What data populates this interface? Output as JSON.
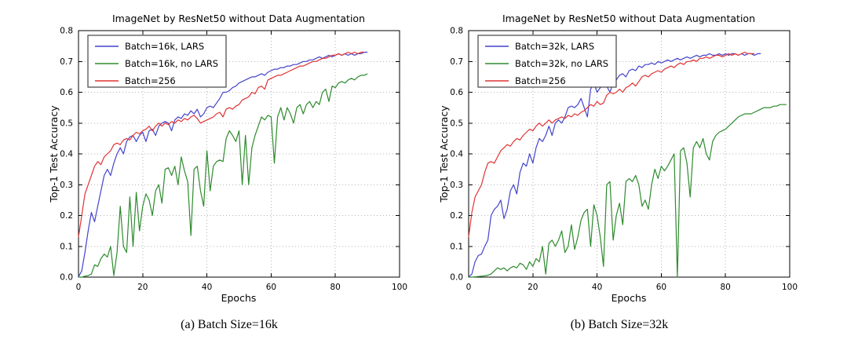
{
  "chart_data": [
    {
      "type": "line",
      "title": "ImageNet by ResNet50 without Data Augmentation",
      "xlabel": "Epochs",
      "ylabel": "Top-1 Test Accuracy",
      "caption": "(a) Batch Size=16k",
      "xlim": [
        0,
        100
      ],
      "ylim": [
        0.0,
        0.8
      ],
      "xticks": [
        "0",
        "20",
        "40",
        "60",
        "80",
        "100"
      ],
      "yticks": [
        "0.0",
        "0.1",
        "0.2",
        "0.3",
        "0.4",
        "0.5",
        "0.6",
        "0.7",
        "0.8"
      ],
      "grid": true,
      "legend_position": "upper left",
      "series": [
        {
          "name": "Batch=16k, LARS",
          "color": "#4444cc",
          "x_start": 0,
          "x_step": 1,
          "values": [
            0.001,
            0.02,
            0.08,
            0.15,
            0.21,
            0.18,
            0.23,
            0.28,
            0.33,
            0.35,
            0.33,
            0.37,
            0.4,
            0.42,
            0.4,
            0.44,
            0.455,
            0.46,
            0.44,
            0.46,
            0.47,
            0.44,
            0.475,
            0.48,
            0.46,
            0.49,
            0.5,
            0.505,
            0.5,
            0.475,
            0.51,
            0.52,
            0.515,
            0.53,
            0.525,
            0.54,
            0.53,
            0.545,
            0.52,
            0.53,
            0.55,
            0.555,
            0.55,
            0.565,
            0.58,
            0.6,
            0.6,
            0.605,
            0.615,
            0.62,
            0.63,
            0.635,
            0.64,
            0.645,
            0.65,
            0.65,
            0.655,
            0.66,
            0.655,
            0.665,
            0.67,
            0.675,
            0.675,
            0.68,
            0.68,
            0.685,
            0.685,
            0.69,
            0.69,
            0.695,
            0.7,
            0.7,
            0.705,
            0.705,
            0.71,
            0.715,
            0.71,
            0.715,
            0.72,
            0.715,
            0.72,
            0.725,
            0.72,
            0.725,
            0.72,
            0.725,
            0.72,
            0.725,
            0.725,
            0.73,
            0.73
          ]
        },
        {
          "name": "Batch=16k, no LARS",
          "color": "#2e8b2e",
          "x_start": 0,
          "x_step": 1,
          "values": [
            0.0,
            0.0,
            0.003,
            0.005,
            0.01,
            0.04,
            0.035,
            0.06,
            0.075,
            0.065,
            0.1,
            0.005,
            0.08,
            0.23,
            0.1,
            0.08,
            0.26,
            0.1,
            0.275,
            0.15,
            0.23,
            0.27,
            0.25,
            0.2,
            0.28,
            0.3,
            0.24,
            0.35,
            0.355,
            0.33,
            0.36,
            0.3,
            0.39,
            0.345,
            0.31,
            0.135,
            0.35,
            0.36,
            0.28,
            0.23,
            0.41,
            0.28,
            0.36,
            0.375,
            0.38,
            0.375,
            0.45,
            0.475,
            0.46,
            0.44,
            0.475,
            0.3,
            0.46,
            0.3,
            0.42,
            0.46,
            0.49,
            0.52,
            0.51,
            0.525,
            0.52,
            0.37,
            0.52,
            0.55,
            0.51,
            0.55,
            0.53,
            0.5,
            0.55,
            0.56,
            0.53,
            0.56,
            0.57,
            0.55,
            0.57,
            0.56,
            0.6,
            0.61,
            0.57,
            0.62,
            0.615,
            0.63,
            0.635,
            0.63,
            0.64,
            0.645,
            0.64,
            0.65,
            0.655,
            0.655,
            0.66
          ]
        },
        {
          "name": "Batch=256",
          "color": "#e03333",
          "x_start": 0,
          "x_step": 1,
          "values": [
            0.13,
            0.2,
            0.27,
            0.3,
            0.33,
            0.36,
            0.375,
            0.365,
            0.39,
            0.4,
            0.41,
            0.43,
            0.435,
            0.43,
            0.445,
            0.45,
            0.445,
            0.46,
            0.47,
            0.465,
            0.475,
            0.48,
            0.49,
            0.475,
            0.49,
            0.5,
            0.49,
            0.5,
            0.495,
            0.505,
            0.5,
            0.51,
            0.505,
            0.515,
            0.51,
            0.52,
            0.525,
            0.515,
            0.5,
            0.505,
            0.51,
            0.515,
            0.52,
            0.53,
            0.535,
            0.52,
            0.545,
            0.55,
            0.545,
            0.555,
            0.56,
            0.575,
            0.58,
            0.585,
            0.6,
            0.595,
            0.615,
            0.62,
            0.61,
            0.64,
            0.645,
            0.65,
            0.655,
            0.655,
            0.66,
            0.665,
            0.67,
            0.675,
            0.68,
            0.685,
            0.685,
            0.69,
            0.695,
            0.7,
            0.7,
            0.705,
            0.71,
            0.71,
            0.715,
            0.72,
            0.72,
            0.725,
            0.72,
            0.725,
            0.73,
            0.725,
            0.73,
            0.725,
            0.73,
            0.73
          ]
        }
      ]
    },
    {
      "type": "line",
      "title": "ImageNet by ResNet50 without Data Augmentation",
      "xlabel": "Epochs",
      "ylabel": "Top-1 Test Accuracy",
      "caption": "(b) Batch Size=32k",
      "xlim": [
        0,
        100
      ],
      "ylim": [
        0.0,
        0.8
      ],
      "xticks": [
        "0",
        "20",
        "40",
        "60",
        "80",
        "100"
      ],
      "yticks": [
        "0.0",
        "0.1",
        "0.2",
        "0.3",
        "0.4",
        "0.5",
        "0.6",
        "0.7",
        "0.8"
      ],
      "grid": true,
      "legend_position": "upper left",
      "series": [
        {
          "name": "Batch=32k, LARS",
          "color": "#4444cc",
          "x_start": 0,
          "x_step": 1,
          "values": [
            0.0,
            0.01,
            0.05,
            0.07,
            0.075,
            0.1,
            0.12,
            0.2,
            0.22,
            0.23,
            0.25,
            0.19,
            0.22,
            0.28,
            0.3,
            0.27,
            0.34,
            0.37,
            0.36,
            0.4,
            0.37,
            0.42,
            0.45,
            0.44,
            0.46,
            0.49,
            0.46,
            0.5,
            0.51,
            0.5,
            0.52,
            0.55,
            0.555,
            0.55,
            0.56,
            0.58,
            0.55,
            0.52,
            0.61,
            0.63,
            0.6,
            0.615,
            0.63,
            0.62,
            0.6,
            0.63,
            0.64,
            0.655,
            0.66,
            0.65,
            0.67,
            0.675,
            0.67,
            0.685,
            0.68,
            0.69,
            0.69,
            0.695,
            0.69,
            0.7,
            0.695,
            0.7,
            0.705,
            0.7,
            0.705,
            0.71,
            0.705,
            0.71,
            0.715,
            0.71,
            0.715,
            0.72,
            0.715,
            0.72,
            0.72,
            0.725,
            0.72,
            0.72,
            0.725,
            0.72,
            0.725,
            0.72,
            0.725,
            0.725,
            0.72,
            0.725,
            0.72,
            0.725,
            0.725,
            0.72,
            0.725,
            0.725
          ]
        },
        {
          "name": "Batch=32k, no LARS",
          "color": "#2e8b2e",
          "x_start": 0,
          "x_step": 1,
          "values": [
            0.0,
            0.0,
            0.001,
            0.002,
            0.003,
            0.004,
            0.006,
            0.01,
            0.02,
            0.03,
            0.025,
            0.03,
            0.02,
            0.03,
            0.035,
            0.03,
            0.045,
            0.04,
            0.025,
            0.05,
            0.035,
            0.06,
            0.05,
            0.1,
            0.01,
            0.11,
            0.12,
            0.1,
            0.12,
            0.15,
            0.08,
            0.1,
            0.17,
            0.09,
            0.13,
            0.185,
            0.21,
            0.22,
            0.1,
            0.235,
            0.2,
            0.13,
            0.035,
            0.3,
            0.31,
            0.12,
            0.2,
            0.24,
            0.17,
            0.31,
            0.32,
            0.31,
            0.33,
            0.3,
            0.23,
            0.25,
            0.22,
            0.3,
            0.35,
            0.32,
            0.36,
            0.345,
            0.36,
            0.38,
            0.4,
            0.0,
            0.41,
            0.42,
            0.37,
            0.26,
            0.42,
            0.44,
            0.42,
            0.45,
            0.4,
            0.38,
            0.44,
            0.46,
            0.47,
            0.475,
            0.48,
            0.49,
            0.5,
            0.51,
            0.52,
            0.525,
            0.53,
            0.53,
            0.53,
            0.535,
            0.54,
            0.545,
            0.55,
            0.55,
            0.55,
            0.555,
            0.555,
            0.56,
            0.56,
            0.56
          ]
        },
        {
          "name": "Batch=256",
          "color": "#e03333",
          "x_start": 0,
          "x_step": 1,
          "values": [
            0.13,
            0.21,
            0.26,
            0.28,
            0.3,
            0.34,
            0.37,
            0.375,
            0.37,
            0.39,
            0.41,
            0.42,
            0.43,
            0.425,
            0.44,
            0.45,
            0.445,
            0.46,
            0.47,
            0.48,
            0.475,
            0.49,
            0.5,
            0.49,
            0.5,
            0.51,
            0.5,
            0.51,
            0.515,
            0.52,
            0.515,
            0.525,
            0.52,
            0.53,
            0.525,
            0.535,
            0.54,
            0.55,
            0.56,
            0.555,
            0.57,
            0.56,
            0.565,
            0.59,
            0.6,
            0.595,
            0.6,
            0.61,
            0.6,
            0.615,
            0.62,
            0.63,
            0.62,
            0.635,
            0.65,
            0.655,
            0.65,
            0.66,
            0.665,
            0.67,
            0.665,
            0.675,
            0.68,
            0.685,
            0.68,
            0.69,
            0.695,
            0.69,
            0.7,
            0.7,
            0.705,
            0.7,
            0.71,
            0.71,
            0.715,
            0.71,
            0.715,
            0.72,
            0.72,
            0.715,
            0.72,
            0.725,
            0.72,
            0.725,
            0.72,
            0.725,
            0.73,
            0.725,
            0.725,
            0.725
          ]
        }
      ]
    }
  ]
}
